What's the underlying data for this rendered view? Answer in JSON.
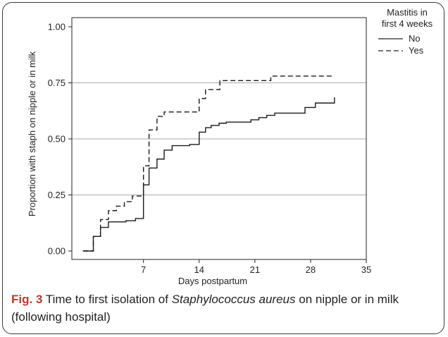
{
  "caption": {
    "fig_label": "Fig. 3",
    "text_before": "Time to first isolation of",
    "species": "Staphylococcus aureus",
    "text_after": "on nipple or in milk (following hospital)"
  },
  "chart_data": {
    "type": "line",
    "title": "",
    "xlabel": "Days postpartum",
    "ylabel": "Proportion with staph on nipple or in milk",
    "xlim": [
      -2,
      35
    ],
    "ylim": [
      0,
      1
    ],
    "x_ticks": [
      "7",
      "14",
      "21",
      "28",
      "35"
    ],
    "x_tick_values": [
      7,
      14,
      21,
      28,
      35
    ],
    "y_ticks": [
      "0.00",
      "0.25",
      "0.50",
      "0.75",
      "1.00"
    ],
    "y_tick_values": [
      0,
      0.25,
      0.5,
      0.75,
      1.0
    ],
    "gridlines_y": [
      0.25,
      0.5,
      0.75
    ],
    "legend": {
      "title_line1": "Mastitis in",
      "title_line2": "first 4 weeks",
      "position": "right",
      "entries": [
        "No",
        "Yes"
      ]
    },
    "series": [
      {
        "name": "No",
        "style": "solid",
        "step_points": [
          [
            0,
            0.0
          ],
          [
            0.7,
            0.065
          ],
          [
            1.6,
            0.105
          ],
          [
            2.6,
            0.13
          ],
          [
            4.8,
            0.135
          ],
          [
            6.0,
            0.145
          ],
          [
            7.0,
            0.295
          ],
          [
            7.7,
            0.37
          ],
          [
            8.7,
            0.41
          ],
          [
            9.6,
            0.45
          ],
          [
            10.6,
            0.47
          ],
          [
            12.8,
            0.475
          ],
          [
            14.0,
            0.53
          ],
          [
            14.8,
            0.55
          ],
          [
            15.5,
            0.56
          ],
          [
            16.5,
            0.57
          ],
          [
            17.4,
            0.575
          ],
          [
            20.5,
            0.585
          ],
          [
            21.5,
            0.595
          ],
          [
            22.5,
            0.605
          ],
          [
            23.5,
            0.615
          ],
          [
            27.3,
            0.64
          ],
          [
            28.6,
            0.66
          ],
          [
            31.0,
            0.685
          ]
        ],
        "end_x": 31.0
      },
      {
        "name": "Yes",
        "style": "dashed",
        "step_points": [
          [
            0,
            0.0
          ],
          [
            0.7,
            0.065
          ],
          [
            1.6,
            0.14
          ],
          [
            2.6,
            0.18
          ],
          [
            3.6,
            0.2
          ],
          [
            4.6,
            0.22
          ],
          [
            5.6,
            0.245
          ],
          [
            7.0,
            0.38
          ],
          [
            7.7,
            0.54
          ],
          [
            8.7,
            0.6
          ],
          [
            9.6,
            0.62
          ],
          [
            14.0,
            0.68
          ],
          [
            14.8,
            0.72
          ],
          [
            16.6,
            0.76
          ],
          [
            23.0,
            0.78
          ]
        ],
        "end_x": 31.0
      }
    ]
  }
}
